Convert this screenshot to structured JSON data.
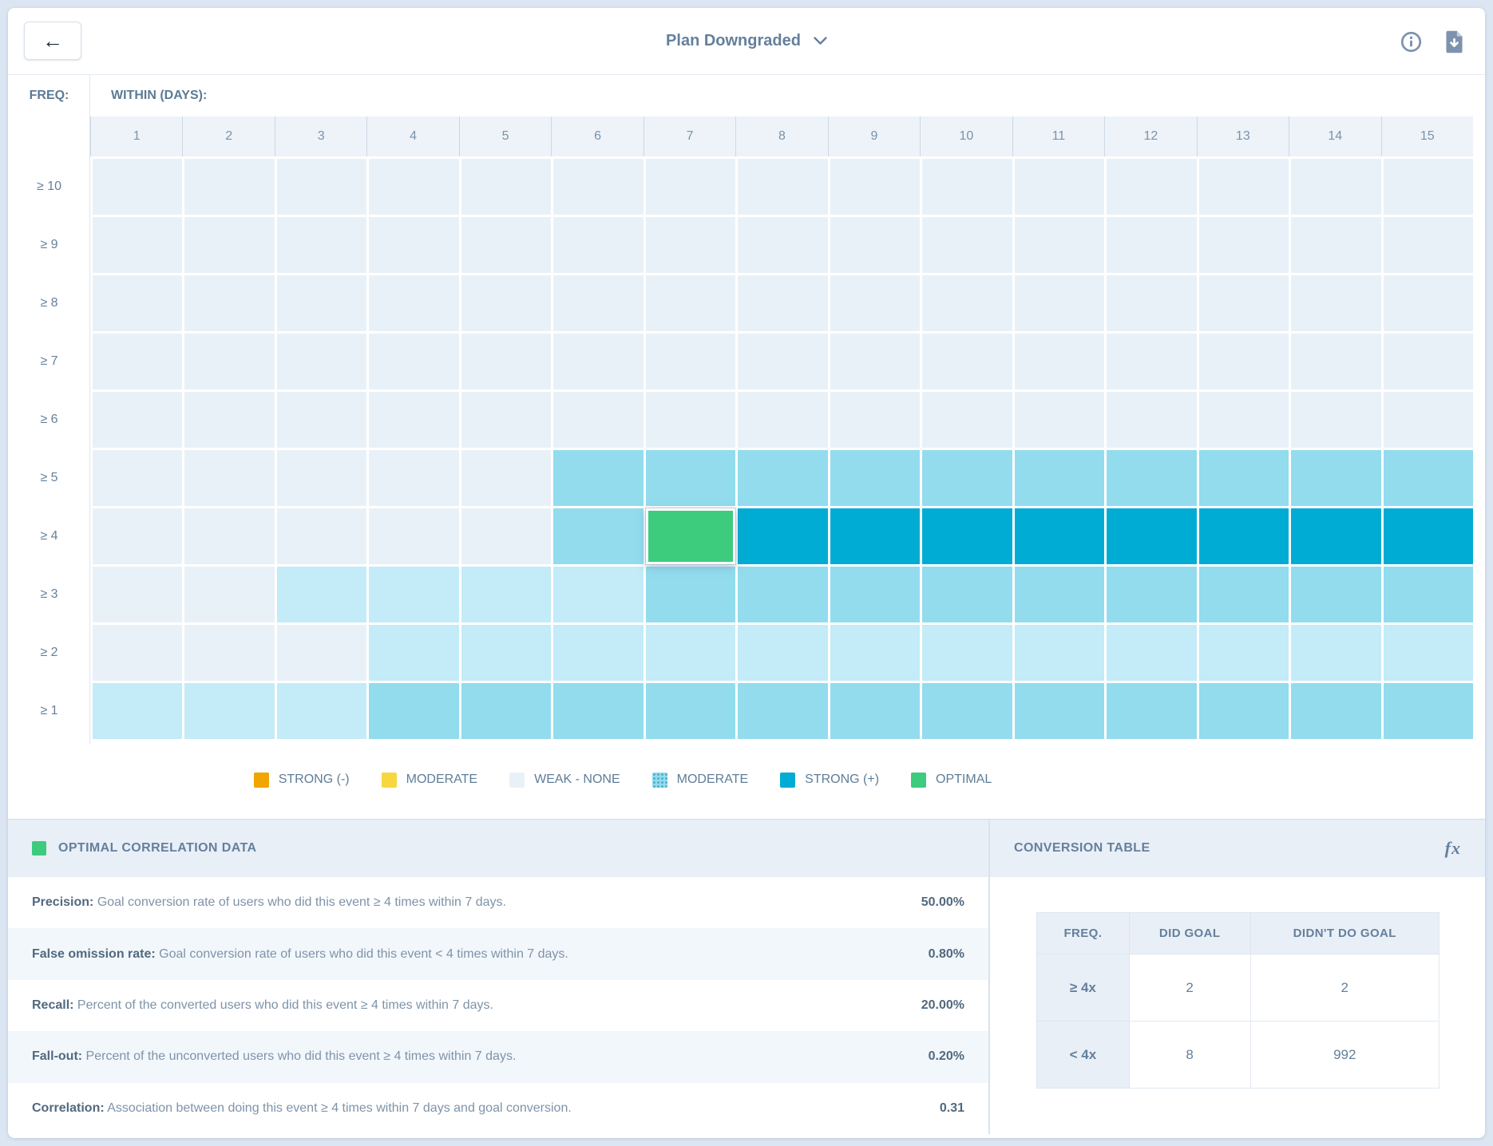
{
  "topbar": {
    "back_label": "←",
    "title": "Plan Downgraded"
  },
  "heatmap": {
    "freq_label": "FREQ:",
    "within_label": "WITHIN (DAYS):",
    "columns": [
      "1",
      "2",
      "3",
      "4",
      "5",
      "6",
      "7",
      "8",
      "9",
      "10",
      "11",
      "12",
      "13",
      "14",
      "15"
    ],
    "levels": {
      "weak": "#e9f1f8",
      "light": "#c3ebf8",
      "moderate": "#92dcee",
      "strong": "#00acd4",
      "optimal": "#3dcb7d"
    },
    "rows": [
      {
        "label": "≥ 10",
        "cells": [
          "weak",
          "weak",
          "weak",
          "weak",
          "weak",
          "weak",
          "weak",
          "weak",
          "weak",
          "weak",
          "weak",
          "weak",
          "weak",
          "weak",
          "weak"
        ]
      },
      {
        "label": "≥ 9",
        "cells": [
          "weak",
          "weak",
          "weak",
          "weak",
          "weak",
          "weak",
          "weak",
          "weak",
          "weak",
          "weak",
          "weak",
          "weak",
          "weak",
          "weak",
          "weak"
        ]
      },
      {
        "label": "≥ 8",
        "cells": [
          "weak",
          "weak",
          "weak",
          "weak",
          "weak",
          "weak",
          "weak",
          "weak",
          "weak",
          "weak",
          "weak",
          "weak",
          "weak",
          "weak",
          "weak"
        ]
      },
      {
        "label": "≥ 7",
        "cells": [
          "weak",
          "weak",
          "weak",
          "weak",
          "weak",
          "weak",
          "weak",
          "weak",
          "weak",
          "weak",
          "weak",
          "weak",
          "weak",
          "weak",
          "weak"
        ]
      },
      {
        "label": "≥ 6",
        "cells": [
          "weak",
          "weak",
          "weak",
          "weak",
          "weak",
          "weak",
          "weak",
          "weak",
          "weak",
          "weak",
          "weak",
          "weak",
          "weak",
          "weak",
          "weak"
        ]
      },
      {
        "label": "≥ 5",
        "cells": [
          "weak",
          "weak",
          "weak",
          "weak",
          "weak",
          "moderate",
          "moderate",
          "moderate",
          "moderate",
          "moderate",
          "moderate",
          "moderate",
          "moderate",
          "moderate",
          "moderate"
        ]
      },
      {
        "label": "≥ 4",
        "cells": [
          "weak",
          "weak",
          "weak",
          "weak",
          "weak",
          "moderate",
          "optimal",
          "strong",
          "strong",
          "strong",
          "strong",
          "strong",
          "strong",
          "strong",
          "strong"
        ]
      },
      {
        "label": "≥ 3",
        "cells": [
          "weak",
          "weak",
          "light",
          "light",
          "light",
          "light",
          "moderate",
          "moderate",
          "moderate",
          "moderate",
          "moderate",
          "moderate",
          "moderate",
          "moderate",
          "moderate"
        ]
      },
      {
        "label": "≥ 2",
        "cells": [
          "weak",
          "weak",
          "weak",
          "light",
          "light",
          "light",
          "light",
          "light",
          "light",
          "light",
          "light",
          "light",
          "light",
          "light",
          "light"
        ]
      },
      {
        "label": "≥ 1",
        "cells": [
          "light",
          "light",
          "light",
          "moderate",
          "moderate",
          "moderate",
          "moderate",
          "moderate",
          "moderate",
          "moderate",
          "moderate",
          "moderate",
          "moderate",
          "moderate",
          "moderate"
        ]
      }
    ]
  },
  "legend": {
    "items": [
      {
        "label": "STRONG (-)",
        "color": "#f0a500",
        "patterned": false
      },
      {
        "label": "MODERATE",
        "color": "#f8d73e",
        "patterned": false
      },
      {
        "label": "WEAK - NONE",
        "color": "#e9f1f8",
        "patterned": false
      },
      {
        "label": "MODERATE",
        "color": "#92dcee",
        "patterned": true
      },
      {
        "label": "STRONG (+)",
        "color": "#00acd4",
        "patterned": false
      },
      {
        "label": "OPTIMAL",
        "color": "#3dcb7d",
        "patterned": false
      }
    ]
  },
  "optimal_panel": {
    "title": "OPTIMAL CORRELATION DATA",
    "swatch_color": "#3dcb7d",
    "metrics": [
      {
        "name": "Precision:",
        "description": "Goal conversion rate of users who did this event ≥ 4 times within 7 days.",
        "value": "50.00%"
      },
      {
        "name": "False omission rate:",
        "description": "Goal conversion rate of users who did this event < 4 times within 7 days.",
        "value": "0.80%"
      },
      {
        "name": "Recall:",
        "description": "Percent of the converted users who did this event ≥ 4 times within 7 days.",
        "value": "20.00%"
      },
      {
        "name": "Fall-out:",
        "description": "Percent of the unconverted users who did this event ≥ 4 times within 7 days.",
        "value": "0.20%"
      },
      {
        "name": "Correlation:",
        "description": "Association between doing this event ≥ 4 times within 7 days and goal conversion.",
        "value": "0.31"
      }
    ]
  },
  "conversion_panel": {
    "title": "CONVERSION TABLE",
    "fx_label": "fx",
    "table": {
      "headers": [
        "FREQ.",
        "DID GOAL",
        "DIDN'T DO GOAL"
      ],
      "rows": [
        {
          "freq": "≥ 4x",
          "did_goal": "2",
          "didnt_do_goal": "2"
        },
        {
          "freq": "< 4x",
          "did_goal": "8",
          "didnt_do_goal": "992"
        }
      ]
    }
  }
}
